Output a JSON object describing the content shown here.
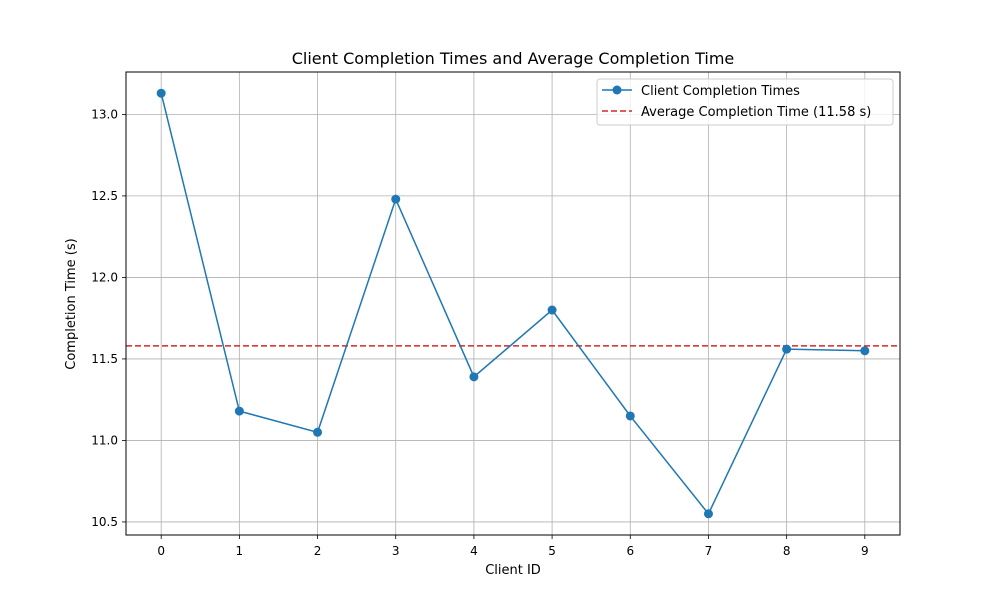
{
  "chart_data": {
    "type": "line",
    "title": "Client Completion Times and Average Completion Time",
    "xlabel": "Client ID",
    "ylabel": "Completion Time (s)",
    "x": [
      0,
      1,
      2,
      3,
      4,
      5,
      6,
      7,
      8,
      9
    ],
    "x_ticks": [
      "0",
      "1",
      "2",
      "3",
      "4",
      "5",
      "6",
      "7",
      "8",
      "9"
    ],
    "y_ticks": [
      "10.5",
      "11.0",
      "11.5",
      "12.0",
      "12.5",
      "13.0"
    ],
    "xlim": [
      -0.45,
      9.45
    ],
    "ylim": [
      10.42,
      13.26
    ],
    "grid": true,
    "legend_position": "top-right",
    "series": [
      {
        "name": "Client Completion Times",
        "style": "line-with-markers",
        "color": "#1f77b4",
        "values": [
          13.13,
          11.18,
          11.05,
          12.48,
          11.39,
          11.8,
          11.15,
          10.55,
          11.56,
          11.55
        ]
      }
    ],
    "reference_lines": [
      {
        "name": "Average Completion Time (11.58 s)",
        "style": "dashed",
        "color": "#d62728",
        "y": 11.58
      }
    ]
  }
}
